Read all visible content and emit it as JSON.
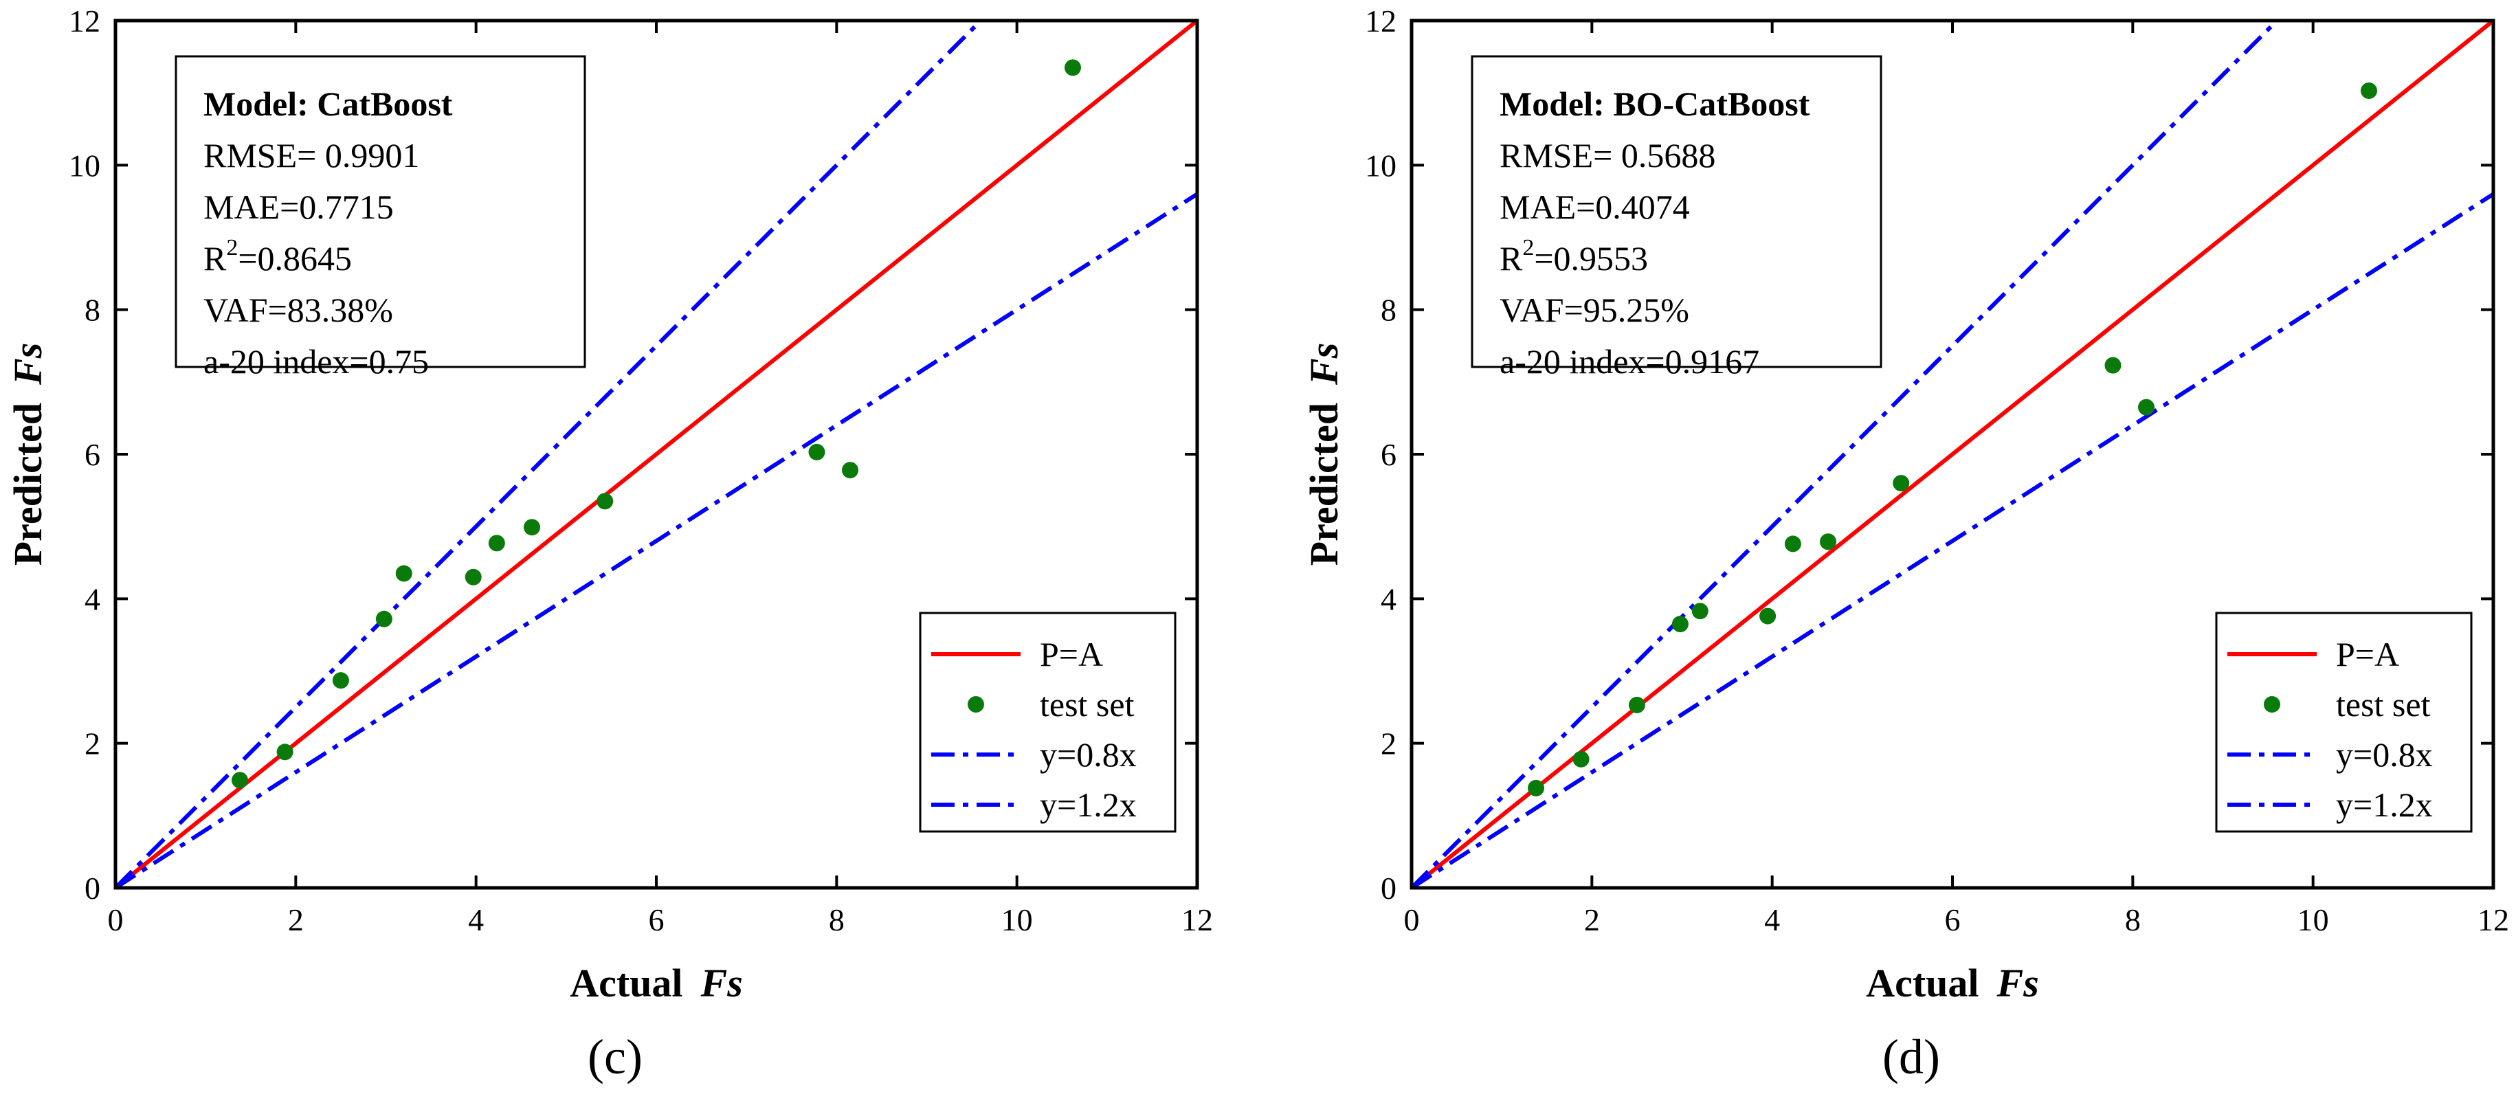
{
  "colors": {
    "identity_line": "#ff0000",
    "points": "#0a7a0a",
    "bound_lines": "#0000ff",
    "axes": "#000000"
  },
  "chart_data": [
    {
      "type": "scatter",
      "panel_label": "(c)",
      "xlabel": {
        "prefix": "Actual",
        "symbol": "Fs"
      },
      "ylabel": {
        "prefix": "Predicted",
        "symbol": "Fs"
      },
      "xlim": [
        0,
        12
      ],
      "ylim": [
        0,
        12
      ],
      "xticks": [
        0,
        2,
        4,
        6,
        8,
        10,
        12
      ],
      "yticks": [
        0,
        2,
        4,
        6,
        8,
        10,
        12
      ],
      "grid": false,
      "metrics": {
        "title": "Model: CatBoost",
        "rmse": "RMSE= 0.9901",
        "mae": "MAE=0.7715",
        "r2_prefix": "R",
        "r2_exp": "2",
        "r2_value": "=0.8645",
        "vaf": "VAF=83.38%",
        "a20": "a-20 index=0.75"
      },
      "legend": {
        "placement": "bottom-right",
        "items": [
          "P=A",
          "test set",
          "y=0.8x",
          "y=1.2x"
        ]
      },
      "lines": [
        {
          "name": "P=A",
          "slope": 1.0,
          "style": "solid"
        },
        {
          "name": "y=0.8x",
          "slope": 1.25,
          "style": "dashdot"
        },
        {
          "name": "y=1.2x",
          "slope": 0.8,
          "style": "dashdot"
        }
      ],
      "series": [
        {
          "name": "test set",
          "x": [
            1.38,
            1.88,
            2.5,
            2.98,
            3.2,
            3.97,
            4.23,
            4.62,
            5.43,
            7.78,
            8.15,
            10.62
          ],
          "y": [
            1.49,
            1.88,
            2.87,
            3.72,
            4.35,
            4.3,
            4.77,
            4.99,
            5.35,
            6.03,
            5.78,
            11.35
          ]
        }
      ]
    },
    {
      "type": "scatter",
      "panel_label": "(d)",
      "xlabel": {
        "prefix": "Actual",
        "symbol": "Fs"
      },
      "ylabel": {
        "prefix": "Predicted",
        "symbol": "Fs"
      },
      "xlim": [
        0,
        12
      ],
      "ylim": [
        0,
        12
      ],
      "xticks": [
        0,
        2,
        4,
        6,
        8,
        10,
        12
      ],
      "yticks": [
        0,
        2,
        4,
        6,
        8,
        10,
        12
      ],
      "grid": false,
      "metrics": {
        "title": "Model: BO-CatBoost",
        "rmse": "RMSE= 0.5688",
        "mae": "MAE=0.4074",
        "r2_prefix": "R",
        "r2_exp": "2",
        "r2_value": "=0.9553",
        "vaf": "VAF=95.25%",
        "a20": "a-20 index=0.9167"
      },
      "legend": {
        "placement": "bottom-right",
        "items": [
          "P=A",
          "test set",
          "y=0.8x",
          "y=1.2x"
        ]
      },
      "lines": [
        {
          "name": "P=A",
          "slope": 1.0,
          "style": "solid"
        },
        {
          "name": "y=0.8x",
          "slope": 1.25,
          "style": "dashdot"
        },
        {
          "name": "y=1.2x",
          "slope": 0.8,
          "style": "dashdot"
        }
      ],
      "series": [
        {
          "name": "test set",
          "x": [
            1.38,
            1.88,
            2.5,
            2.98,
            3.2,
            3.95,
            4.23,
            4.62,
            5.43,
            7.78,
            8.15,
            10.62
          ],
          "y": [
            1.38,
            1.78,
            2.53,
            3.65,
            3.83,
            3.76,
            4.76,
            4.79,
            5.6,
            7.23,
            6.65,
            11.03
          ]
        }
      ]
    }
  ]
}
